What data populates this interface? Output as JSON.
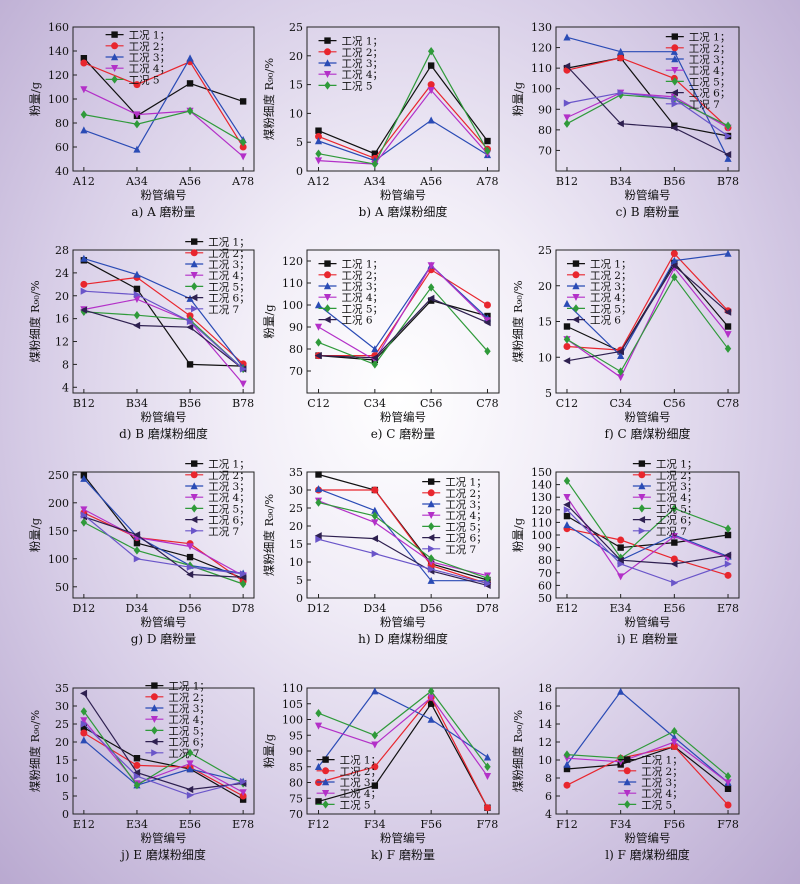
{
  "figure": {
    "colors": [
      "#111111",
      "#e8262e",
      "#2a4bb5",
      "#b330c8",
      "#2f9a3a",
      "#2e2050",
      "#6a55c9"
    ],
    "markers": [
      "square",
      "circle",
      "triangle",
      "triangle-down",
      "diamond",
      "triangle-left",
      "triangle-right"
    ]
  },
  "chart_data": [
    {
      "type": "line",
      "caption": "a) A 磨粉量",
      "xlabel": "粉管编号",
      "ylabel": "粉量/g",
      "categories": [
        "A12",
        "A34",
        "A56",
        "A78"
      ],
      "ylim": [
        40,
        160
      ],
      "yticks": [
        40,
        60,
        80,
        100,
        120,
        140,
        160
      ],
      "legend_loc": "top-center",
      "series": [
        {
          "name": "工况 1；",
          "values": [
            134,
            86,
            113,
            98
          ]
        },
        {
          "name": "工况 2；",
          "values": [
            130,
            112,
            131,
            60
          ]
        },
        {
          "name": "工况 3；",
          "values": [
            74,
            58,
            134,
            66
          ]
        },
        {
          "name": "工况 4；",
          "values": [
            108,
            87,
            90,
            52
          ]
        },
        {
          "name": "工况 5",
          "values": [
            87,
            79,
            90,
            64
          ]
        }
      ]
    },
    {
      "type": "line",
      "caption": "b) A 磨煤粉细度",
      "xlabel": "粉管编号",
      "ylabel": "煤粉细度 R₉₀/%",
      "categories": [
        "A12",
        "A34",
        "A56",
        "A78"
      ],
      "ylim": [
        0,
        25
      ],
      "yticks": [
        0,
        5,
        10,
        15,
        20,
        25
      ],
      "legend_loc": "top-left",
      "series": [
        {
          "name": "工况 1；",
          "values": [
            7,
            3,
            18.3,
            5.2
          ]
        },
        {
          "name": "工况 2；",
          "values": [
            6,
            2.2,
            15,
            3.8
          ]
        },
        {
          "name": "工况 3；",
          "values": [
            5.2,
            1.8,
            8.8,
            2.8
          ]
        },
        {
          "name": "工况 4；",
          "values": [
            1.8,
            1.2,
            14,
            3
          ]
        },
        {
          "name": "工况 5",
          "values": [
            3,
            1.2,
            20.8,
            3.5
          ]
        }
      ]
    },
    {
      "type": "line",
      "caption": "c) B 磨粉量",
      "xlabel": "粉管编号",
      "ylabel": "粉量/g",
      "categories": [
        "B12",
        "B34",
        "B56",
        "B78"
      ],
      "ylim": [
        60,
        130
      ],
      "yticks": [
        70,
        80,
        90,
        100,
        110,
        120,
        130
      ],
      "legend_loc": "top-right",
      "series": [
        {
          "name": "工况 1；",
          "values": [
            110,
            115,
            82,
            77
          ]
        },
        {
          "name": "工况 2；",
          "values": [
            109,
            115,
            105,
            81
          ]
        },
        {
          "name": "工况 3；",
          "values": [
            125,
            118,
            118,
            66
          ]
        },
        {
          "name": "工况 4；",
          "values": [
            86,
            98,
            96,
            81
          ]
        },
        {
          "name": "工况 5；",
          "values": [
            83,
            97,
            95,
            82
          ]
        },
        {
          "name": "工况 6；",
          "values": [
            111,
            83,
            81,
            68
          ]
        },
        {
          "name": "工况 7",
          "values": [
            93,
            98,
            95,
            77
          ]
        }
      ]
    },
    {
      "type": "line",
      "caption": "d) B 磨煤粉细度",
      "xlabel": "粉管编号",
      "ylabel": "煤粉细度 R₉₀/%",
      "categories": [
        "B12",
        "B34",
        "B56",
        "B78"
      ],
      "ylim": [
        3,
        28
      ],
      "yticks": [
        4,
        8,
        12,
        16,
        20,
        24,
        28
      ],
      "legend_loc": "top-right",
      "series": [
        {
          "name": "工况 1；",
          "values": [
            26.2,
            21.2,
            8,
            7.7
          ]
        },
        {
          "name": "工况 2；",
          "values": [
            22,
            23.2,
            16.5,
            8.1
          ]
        },
        {
          "name": "工况 3；",
          "values": [
            26.5,
            23.7,
            19.5,
            7.5
          ]
        },
        {
          "name": "工况 4；",
          "values": [
            17.6,
            19.4,
            15.5,
            4.6
          ]
        },
        {
          "name": "工况 5；",
          "values": [
            17.2,
            16.6,
            15.8,
            7.2
          ]
        },
        {
          "name": "工况 6；",
          "values": [
            17.5,
            14.8,
            14.5,
            7.2
          ]
        },
        {
          "name": "工况 7",
          "values": [
            20.8,
            20.2,
            15.5,
            7.2
          ]
        }
      ]
    },
    {
      "type": "line",
      "caption": "e) C 磨粉量",
      "xlabel": "粉管编号",
      "ylabel": "粉量/g",
      "categories": [
        "C12",
        "C34",
        "C56",
        "C78"
      ],
      "ylim": [
        60,
        125
      ],
      "yticks": [
        70,
        80,
        90,
        100,
        110,
        120
      ],
      "legend_loc": "top-left",
      "series": [
        {
          "name": "工况 1；",
          "values": [
            77,
            75,
            102,
            95
          ]
        },
        {
          "name": "工况 2；",
          "values": [
            77,
            77,
            116,
            100
          ]
        },
        {
          "name": "工况 3；",
          "values": [
            100,
            80,
            118,
            94
          ]
        },
        {
          "name": "工况 4；",
          "values": [
            90,
            75,
            118,
            93
          ]
        },
        {
          "name": "工况 5；",
          "values": [
            83,
            73,
            108,
            79
          ]
        },
        {
          "name": "工况 6",
          "values": [
            77,
            76,
            103,
            92
          ]
        }
      ]
    },
    {
      "type": "line",
      "caption": "f) C 磨煤粉细度",
      "xlabel": "粉管编号",
      "ylabel": "煤粉细度 R₉₀/%",
      "categories": [
        "C12",
        "C34",
        "C56",
        "C78"
      ],
      "ylim": [
        5,
        25
      ],
      "yticks": [
        5,
        10,
        15,
        20,
        25
      ],
      "legend_loc": "top-left",
      "series": [
        {
          "name": "工况 1；",
          "values": [
            14.3,
            10.8,
            23.2,
            14.3
          ]
        },
        {
          "name": "工况 2；",
          "values": [
            11.5,
            11,
            24.5,
            16.5
          ]
        },
        {
          "name": "工况 3；",
          "values": [
            17.5,
            10.2,
            23.5,
            24.5
          ]
        },
        {
          "name": "工况 4；",
          "values": [
            12.5,
            7.2,
            22.5,
            13.2
          ]
        },
        {
          "name": "工况 5；",
          "values": [
            12.5,
            8,
            21.2,
            11.2
          ]
        },
        {
          "name": "工况 6",
          "values": [
            9.5,
            10.8,
            22.8,
            16.3
          ]
        }
      ]
    },
    {
      "type": "line",
      "caption": "g) D 磨粉量",
      "xlabel": "粉管编号",
      "ylabel": "粉量/g",
      "categories": [
        "D12",
        "D34",
        "D56",
        "D78"
      ],
      "ylim": [
        30,
        255
      ],
      "yticks": [
        50,
        100,
        150,
        200,
        250
      ],
      "legend_loc": "top-right",
      "series": [
        {
          "name": "工况 1；",
          "values": [
            249,
            128,
            103,
            65
          ]
        },
        {
          "name": "工况 2；",
          "values": [
            182,
            138,
            127,
            60
          ]
        },
        {
          "name": "工况 3；",
          "values": [
            243,
            140,
            88,
            74
          ]
        },
        {
          "name": "工况 4；",
          "values": [
            188,
            138,
            122,
            70
          ]
        },
        {
          "name": "工况 5；",
          "values": [
            165,
            115,
            88,
            55
          ]
        },
        {
          "name": "工况 6；",
          "values": [
            175,
            143,
            72,
            67
          ]
        },
        {
          "name": "工况 7",
          "values": [
            178,
            100,
            85,
            73
          ]
        }
      ]
    },
    {
      "type": "line",
      "caption": "h) D 磨煤粉细度",
      "xlabel": "粉管编号",
      "ylabel": "煤粉细度 R₉₀/%",
      "categories": [
        "D12",
        "D34",
        "D56",
        "D78"
      ],
      "ylim": [
        0,
        35
      ],
      "yticks": [
        0,
        5,
        10,
        15,
        20,
        25,
        30,
        35
      ],
      "legend_loc": "top-right",
      "series": [
        {
          "name": "工况 1；",
          "values": [
            34.3,
            30,
            9.5,
            5
          ]
        },
        {
          "name": "工况 2；",
          "values": [
            30,
            30,
            9,
            4
          ]
        },
        {
          "name": "工况 3；",
          "values": [
            30.3,
            24.3,
            4.8,
            4.8
          ]
        },
        {
          "name": "工况 4；",
          "values": [
            27,
            21,
            10,
            6.2
          ]
        },
        {
          "name": "工况 5；",
          "values": [
            26.5,
            22.8,
            11,
            5.5
          ]
        },
        {
          "name": "工况 6；",
          "values": [
            17.3,
            16.5,
            7.5,
            3.5
          ]
        },
        {
          "name": "工况 7",
          "values": [
            16.3,
            12.3,
            8,
            4
          ]
        }
      ]
    },
    {
      "type": "line",
      "caption": "i) E 磨粉量",
      "xlabel": "粉管编号",
      "ylabel": "粉量/g",
      "categories": [
        "E12",
        "E34",
        "E56",
        "E78"
      ],
      "ylim": [
        50,
        150
      ],
      "yticks": [
        50,
        60,
        70,
        80,
        90,
        100,
        110,
        120,
        130,
        140,
        150
      ],
      "legend_loc": "top-right",
      "series": [
        {
          "name": "工况 1；",
          "values": [
            115,
            90,
            94,
            100
          ]
        },
        {
          "name": "工况 2；",
          "values": [
            105,
            96,
            81,
            68
          ]
        },
        {
          "name": "工况 3；",
          "values": [
            108,
            80,
            100,
            83
          ]
        },
        {
          "name": "工况 4；",
          "values": [
            130,
            67,
            99,
            82
          ]
        },
        {
          "name": "工况 5；",
          "values": [
            143,
            82,
            121,
            105
          ]
        },
        {
          "name": "工况 6；",
          "values": [
            124,
            80,
            77,
            84
          ]
        },
        {
          "name": "工况 7",
          "values": [
            120,
            77,
            62,
            77
          ]
        }
      ]
    },
    {
      "type": "line",
      "caption": "j) E 磨煤粉细度",
      "xlabel": "粉管编号",
      "ylabel": "煤粉细度 R₉₀/%",
      "categories": [
        "E12",
        "E34",
        "E56",
        "E78"
      ],
      "ylim": [
        0,
        35
      ],
      "yticks": [
        0,
        5,
        10,
        15,
        20,
        25,
        30,
        35
      ],
      "legend_loc": "top-right",
      "series": [
        {
          "name": "工况 1；",
          "values": [
            24,
            15.5,
            12.5,
            4
          ]
        },
        {
          "name": "工况 2；",
          "values": [
            22.5,
            13.5,
            13,
            5
          ]
        },
        {
          "name": "工况 3；",
          "values": [
            20.5,
            8,
            12.5,
            9
          ]
        },
        {
          "name": "工况 4；",
          "values": [
            26,
            8.5,
            14,
            6
          ]
        },
        {
          "name": "工况 5；",
          "values": [
            28.5,
            8,
            17,
            8.5
          ]
        },
        {
          "name": "工况 6；",
          "values": [
            33.5,
            11.5,
            6.8,
            8.5
          ]
        },
        {
          "name": "工况 7",
          "values": [
            25,
            10.5,
            5.2,
            9
          ]
        }
      ]
    },
    {
      "type": "line",
      "caption": "k) F 磨粉量",
      "xlabel": "粉管编号",
      "ylabel": "粉量/g",
      "categories": [
        "F12",
        "F34",
        "F56",
        "F78"
      ],
      "ylim": [
        70,
        110
      ],
      "yticks": [
        70,
        75,
        80,
        85,
        90,
        95,
        100,
        105,
        110
      ],
      "legend_loc": "bottom-left",
      "series": [
        {
          "name": "工况 1；",
          "values": [
            74,
            79,
            105,
            72
          ]
        },
        {
          "name": "工况 2；",
          "values": [
            80,
            85,
            107,
            72
          ]
        },
        {
          "name": "工况 3；",
          "values": [
            85,
            109,
            100,
            88
          ]
        },
        {
          "name": "工况 4；",
          "values": [
            98,
            92,
            107,
            82
          ]
        },
        {
          "name": "工况 5",
          "values": [
            102,
            95,
            109,
            85
          ]
        }
      ]
    },
    {
      "type": "line",
      "caption": "l) F 磨煤粉细度",
      "xlabel": "粉管编号",
      "ylabel": "煤粉细度 R₉₀/%",
      "categories": [
        "F12",
        "F34",
        "F56",
        "F78"
      ],
      "ylim": [
        4,
        18
      ],
      "yticks": [
        4,
        6,
        8,
        10,
        12,
        14,
        16,
        18
      ],
      "legend_loc": "bottom-right",
      "series": [
        {
          "name": "工况 1；",
          "values": [
            9,
            9.5,
            11.5,
            6.8
          ]
        },
        {
          "name": "工况 2；",
          "values": [
            7.2,
            10.2,
            11.5,
            5
          ]
        },
        {
          "name": "工况 3；",
          "values": [
            9.5,
            17.6,
            12.5,
            7.5
          ]
        },
        {
          "name": "工况 4；",
          "values": [
            10.2,
            9.8,
            12,
            7.5
          ]
        },
        {
          "name": "工况 5",
          "values": [
            10.6,
            10.2,
            13.2,
            8.2
          ]
        }
      ]
    }
  ]
}
